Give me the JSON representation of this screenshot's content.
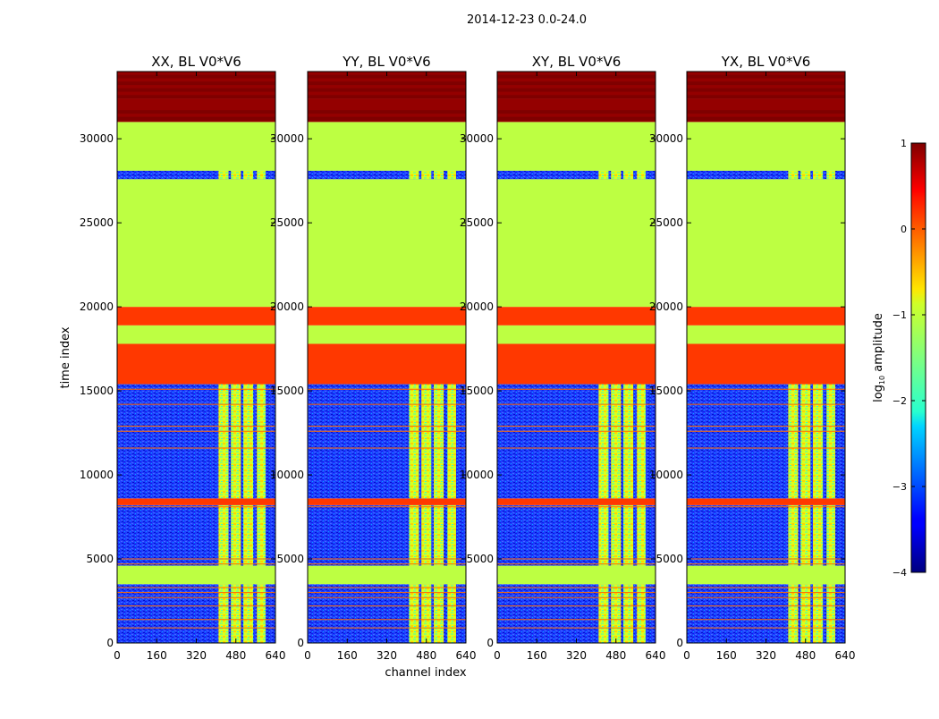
{
  "suptitle": "2014-12-23 0.0-24.0",
  "chart_data": {
    "type": "heatmap",
    "xlabel": "channel index",
    "ylabel": "time index",
    "xlim": [
      0,
      640
    ],
    "ylim": [
      0,
      34000
    ],
    "xticks": [
      0,
      160,
      320,
      480,
      640
    ],
    "yticks": [
      0,
      5000,
      10000,
      15000,
      20000,
      25000,
      30000
    ],
    "panels": [
      {
        "title": "XX, BL V0*V6"
      },
      {
        "title": "YY, BL V0*V6"
      },
      {
        "title": "XY, BL V0*V6"
      },
      {
        "title": "YX, BL V0*V6"
      }
    ],
    "colorbar": {
      "label": "log10 amplitude",
      "label_base": "log",
      "label_sub": "10",
      "label_rest": " amplitude",
      "range": [
        -4,
        1
      ],
      "ticks": [
        "1",
        "0",
        "−1",
        "−2",
        "−3",
        "−4"
      ],
      "tick_values": [
        1,
        0,
        -1,
        -2,
        -3,
        -4
      ]
    },
    "bands": [
      {
        "t0": 0,
        "t1": 3500,
        "value": -3.4
      },
      {
        "t0": 3500,
        "t1": 4600,
        "value": -1.2
      },
      {
        "t0": 4600,
        "t1": 5000,
        "value": -3.4
      },
      {
        "t0": 5000,
        "t1": 8200,
        "value": -3.4
      },
      {
        "t0": 8200,
        "t1": 8600,
        "value": 0.1
      },
      {
        "t0": 8600,
        "t1": 15400,
        "value": -3.4
      },
      {
        "t0": 15400,
        "t1": 17800,
        "value": 0.1
      },
      {
        "t0": 17800,
        "t1": 18900,
        "value": -1.2
      },
      {
        "t0": 18900,
        "t1": 20000,
        "value": 0.1
      },
      {
        "t0": 20000,
        "t1": 27600,
        "value": -1.2
      },
      {
        "t0": 27600,
        "t1": 28100,
        "value": -3.4
      },
      {
        "t0": 28100,
        "t1": 31000,
        "value": -1.2
      },
      {
        "t0": 31000,
        "t1": 32400,
        "value": 0.9
      },
      {
        "t0": 32400,
        "t1": 34000,
        "value": 0.9
      }
    ],
    "rfi_channels": [
      [
        410,
        450
      ],
      [
        460,
        500
      ],
      [
        510,
        550
      ],
      [
        565,
        600
      ]
    ]
  }
}
